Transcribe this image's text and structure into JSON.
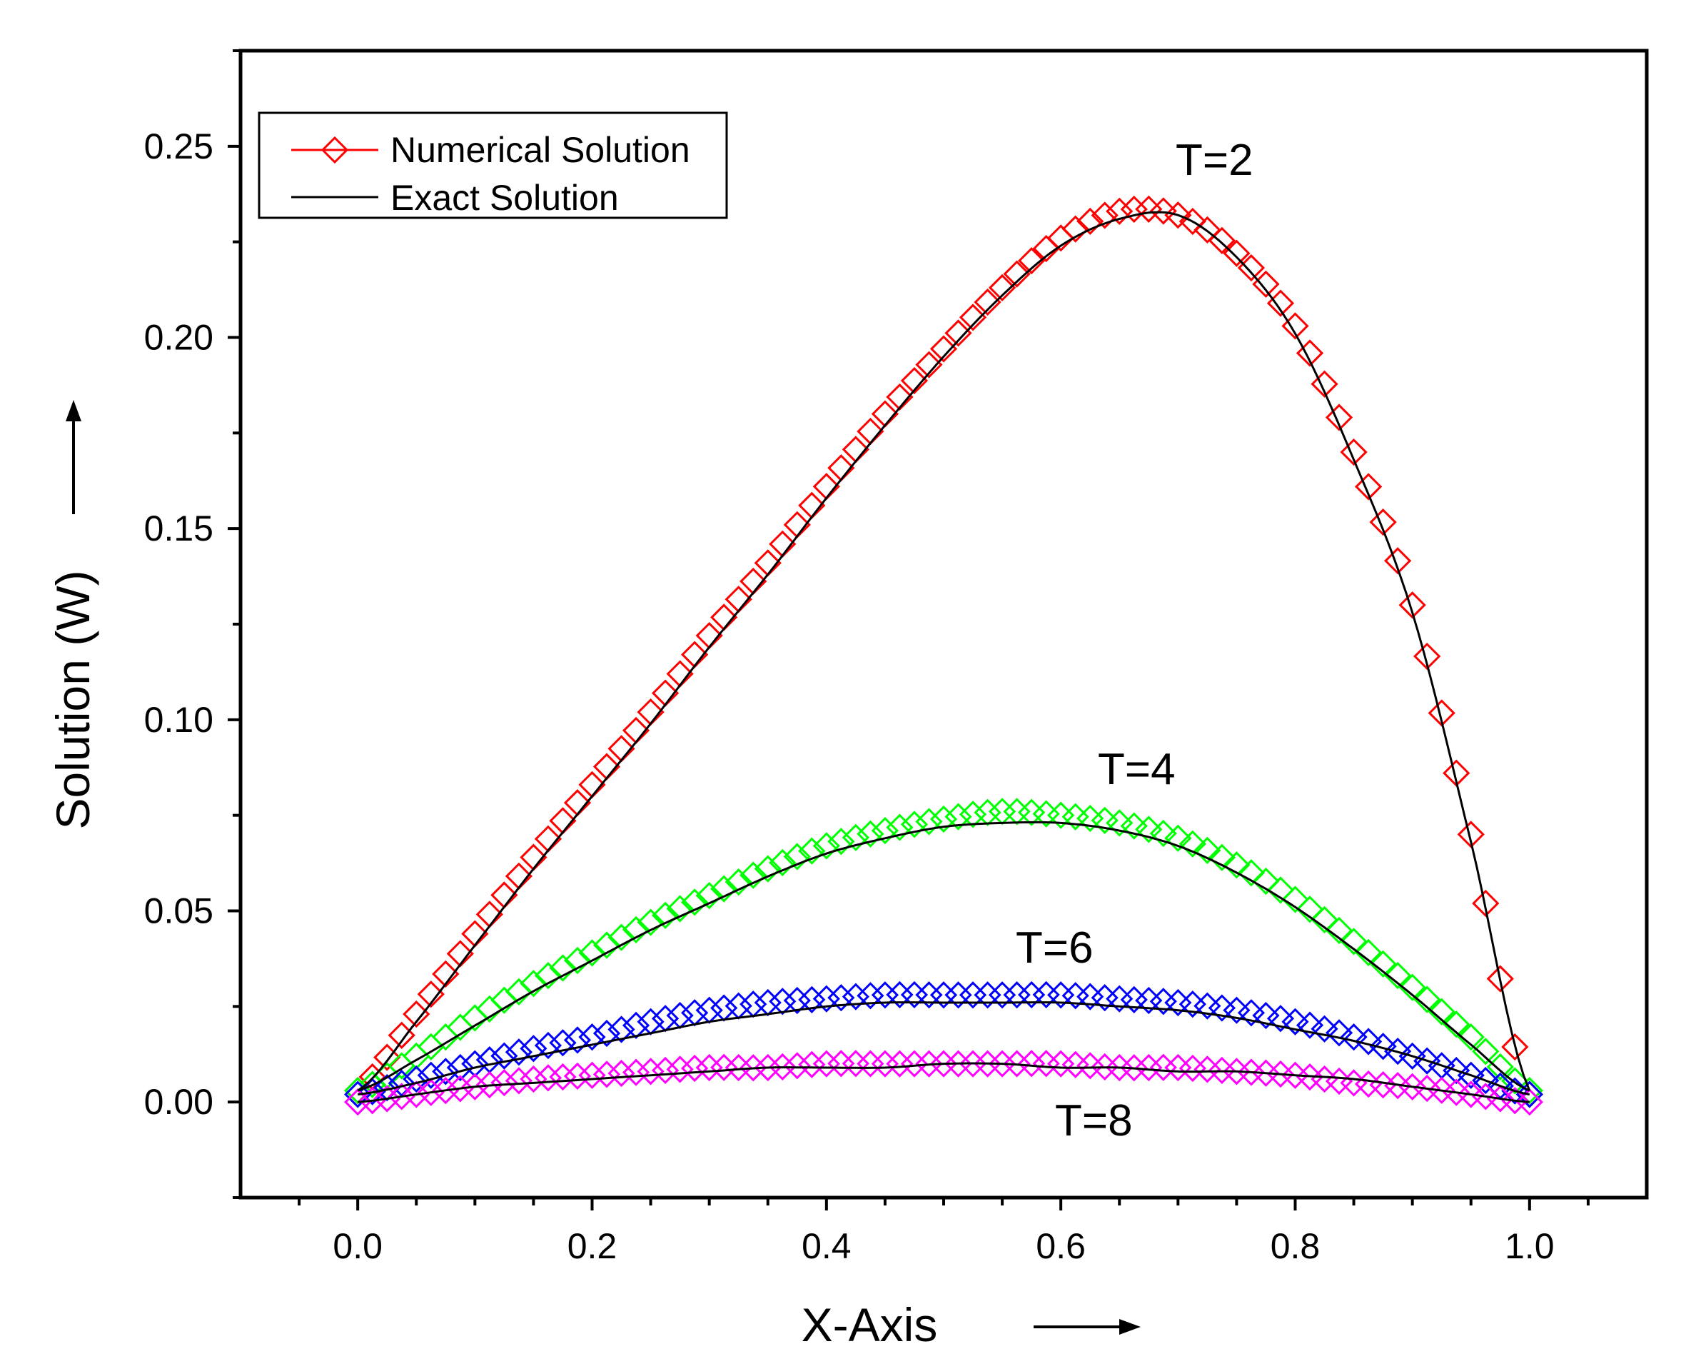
{
  "chart_data": {
    "type": "line",
    "title": "",
    "xlabel": "X-Axis",
    "ylabel": "Solution (W)",
    "xlim": [
      -0.1,
      1.1
    ],
    "ylim": [
      -0.025,
      0.275
    ],
    "xticks": [
      "0.0",
      "0.2",
      "0.4",
      "0.6",
      "0.8",
      "1.0"
    ],
    "yticks": [
      "0.00",
      "0.05",
      "0.10",
      "0.15",
      "0.20",
      "0.25"
    ],
    "grid": false,
    "legend": {
      "position": "top-left",
      "entries": [
        {
          "label": "Numerical Solution",
          "marker": "diamond",
          "color": "#ff0000"
        },
        {
          "label": "Exact Solution",
          "marker": "none",
          "color": "#000000"
        }
      ]
    },
    "x": [
      0.0,
      0.05,
      0.1,
      0.15,
      0.2,
      0.25,
      0.3,
      0.35,
      0.4,
      0.45,
      0.5,
      0.55,
      0.6,
      0.65,
      0.7,
      0.75,
      0.8,
      0.85,
      0.9,
      0.95,
      1.0
    ],
    "series": [
      {
        "name": "T=2",
        "label": "T=2",
        "color": "#ff0000",
        "numerical": [
          0.003,
          0.023,
          0.044,
          0.064,
          0.083,
          0.102,
          0.122,
          0.141,
          0.161,
          0.18,
          0.197,
          0.213,
          0.226,
          0.233,
          0.232,
          0.222,
          0.203,
          0.17,
          0.13,
          0.07,
          0.002
        ],
        "exact": [
          0.003,
          0.021,
          0.041,
          0.061,
          0.08,
          0.099,
          0.119,
          0.138,
          0.158,
          0.177,
          0.195,
          0.211,
          0.224,
          0.231,
          0.232,
          0.221,
          0.201,
          0.168,
          0.128,
          0.068,
          0.003
        ]
      },
      {
        "name": "T=4",
        "label": "T=4",
        "color": "#00ff00",
        "numerical": [
          0.003,
          0.012,
          0.022,
          0.031,
          0.039,
          0.047,
          0.054,
          0.061,
          0.067,
          0.071,
          0.074,
          0.076,
          0.075,
          0.073,
          0.069,
          0.062,
          0.053,
          0.042,
          0.03,
          0.017,
          0.003
        ],
        "exact": [
          0.003,
          0.011,
          0.02,
          0.029,
          0.037,
          0.045,
          0.052,
          0.059,
          0.065,
          0.069,
          0.072,
          0.073,
          0.073,
          0.071,
          0.067,
          0.06,
          0.051,
          0.04,
          0.028,
          0.015,
          0.003
        ]
      },
      {
        "name": "T=6",
        "label": "T=6",
        "color": "#0000ff",
        "numerical": [
          0.002,
          0.006,
          0.01,
          0.014,
          0.017,
          0.021,
          0.024,
          0.026,
          0.027,
          0.028,
          0.028,
          0.028,
          0.028,
          0.027,
          0.026,
          0.024,
          0.021,
          0.017,
          0.012,
          0.007,
          0.002
        ],
        "exact": [
          0.002,
          0.005,
          0.009,
          0.012,
          0.015,
          0.018,
          0.021,
          0.023,
          0.025,
          0.026,
          0.026,
          0.026,
          0.026,
          0.025,
          0.024,
          0.022,
          0.019,
          0.016,
          0.012,
          0.007,
          0.002
        ]
      },
      {
        "name": "T=8",
        "label": "T=8",
        "color": "#ff00ff",
        "numerical": [
          0.0,
          0.002,
          0.004,
          0.006,
          0.007,
          0.008,
          0.009,
          0.009,
          0.01,
          0.01,
          0.01,
          0.01,
          0.01,
          0.009,
          0.009,
          0.008,
          0.007,
          0.005,
          0.004,
          0.002,
          0.0
        ],
        "exact": [
          0.0,
          0.002,
          0.004,
          0.005,
          0.006,
          0.007,
          0.008,
          0.009,
          0.009,
          0.009,
          0.01,
          0.01,
          0.009,
          0.009,
          0.008,
          0.008,
          0.007,
          0.006,
          0.004,
          0.002,
          0.0
        ]
      }
    ]
  }
}
